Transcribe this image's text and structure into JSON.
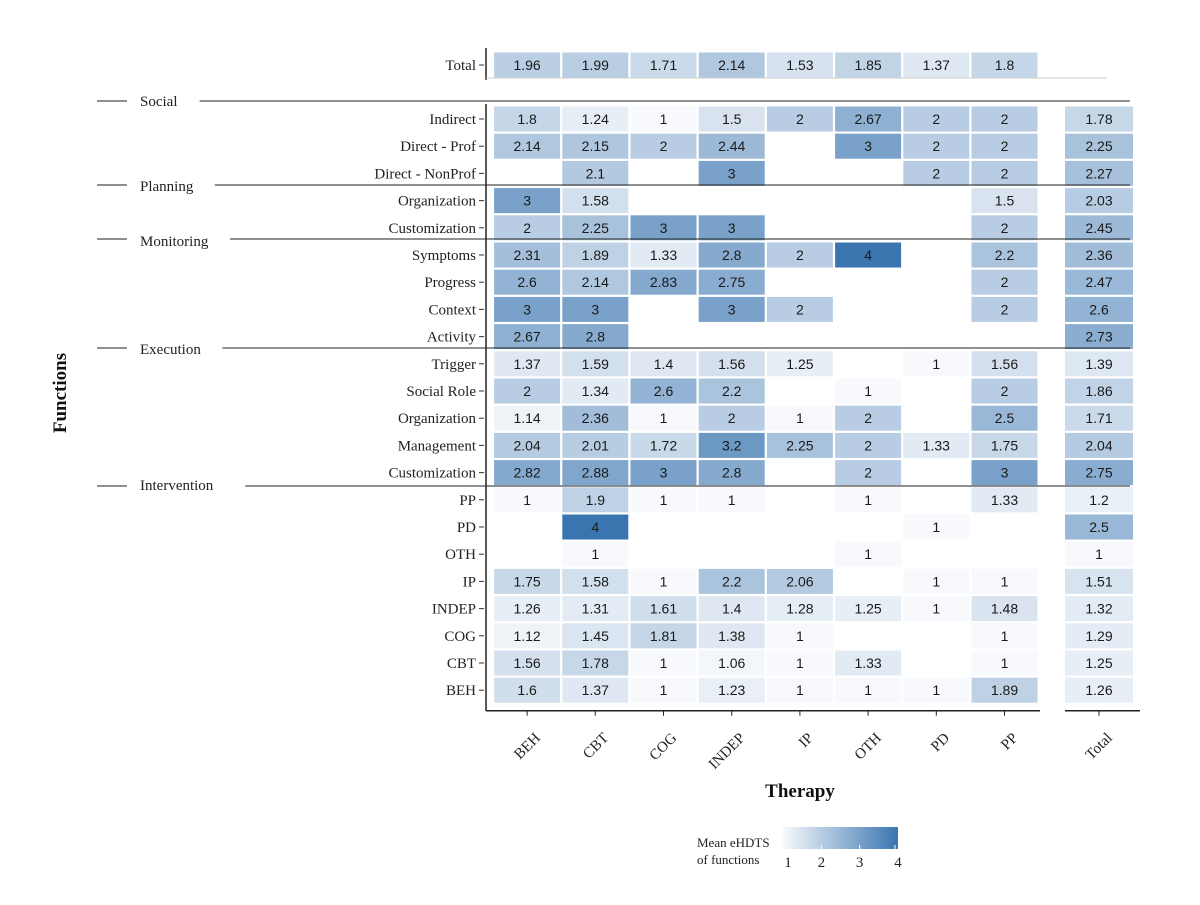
{
  "chart_data": {
    "type": "heatmap",
    "xlabel": "Therapy",
    "ylabel": "Functions",
    "columns": [
      "BEH",
      "CBT",
      "COG",
      "INDEP",
      "IP",
      "OTH",
      "PD",
      "PP"
    ],
    "total_column_label": "Total",
    "total_row": {
      "label": "Total",
      "values": [
        1.96,
        1.99,
        1.71,
        2.14,
        1.53,
        1.85,
        1.37,
        1.8
      ]
    },
    "groups": [
      {
        "name": "Social",
        "rows": [
          {
            "label": "Indirect",
            "values": [
              1.8,
              1.24,
              1,
              1.5,
              2,
              2.67,
              2,
              2
            ],
            "total": 1.78
          },
          {
            "label": "Direct - Prof",
            "values": [
              2.14,
              2.15,
              2,
              2.44,
              null,
              3,
              2,
              2
            ],
            "total": 2.25
          },
          {
            "label": "Direct - NonProf",
            "values": [
              null,
              2.1,
              null,
              3,
              null,
              null,
              2,
              2
            ],
            "total": 2.27
          }
        ]
      },
      {
        "name": "Planning",
        "rows": [
          {
            "label": "Organization",
            "values": [
              3,
              1.58,
              null,
              null,
              null,
              null,
              null,
              1.5
            ],
            "total": 2.03
          },
          {
            "label": "Customization",
            "values": [
              2,
              2.25,
              3,
              3,
              null,
              null,
              null,
              2
            ],
            "total": 2.45
          }
        ]
      },
      {
        "name": "Monitoring",
        "rows": [
          {
            "label": "Symptoms",
            "values": [
              2.31,
              1.89,
              1.33,
              2.8,
              2,
              4,
              null,
              2.2
            ],
            "total": 2.36
          },
          {
            "label": "Progress",
            "values": [
              2.6,
              2.14,
              2.83,
              2.75,
              null,
              null,
              null,
              2
            ],
            "total": 2.47
          },
          {
            "label": "Context",
            "values": [
              3,
              3,
              null,
              3,
              2,
              null,
              null,
              2
            ],
            "total": 2.6
          },
          {
            "label": "Activity",
            "values": [
              2.67,
              2.8,
              null,
              null,
              null,
              null,
              null,
              null
            ],
            "total": 2.73
          }
        ]
      },
      {
        "name": "Execution",
        "rows": [
          {
            "label": "Trigger",
            "values": [
              1.37,
              1.59,
              1.4,
              1.56,
              1.25,
              null,
              1,
              1.56
            ],
            "total": 1.39
          },
          {
            "label": "Social Role",
            "values": [
              2,
              1.34,
              2.6,
              2.2,
              null,
              1,
              null,
              2
            ],
            "total": 1.86
          },
          {
            "label": "Organization",
            "values": [
              1.14,
              2.36,
              1,
              2,
              1,
              2,
              null,
              2.5
            ],
            "total": 1.71
          },
          {
            "label": "Management",
            "values": [
              2.04,
              2.01,
              1.72,
              3.2,
              2.25,
              2,
              1.33,
              1.75
            ],
            "total": 2.04
          },
          {
            "label": "Customization",
            "values": [
              2.82,
              2.88,
              3,
              2.8,
              null,
              2,
              null,
              3
            ],
            "total": 2.75
          }
        ]
      },
      {
        "name": "Intervention",
        "rows": [
          {
            "label": "PP",
            "values": [
              1,
              1.9,
              1,
              1,
              null,
              1,
              null,
              1.33
            ],
            "total": 1.2
          },
          {
            "label": "PD",
            "values": [
              null,
              4,
              null,
              null,
              null,
              null,
              1,
              null
            ],
            "total": 2.5
          },
          {
            "label": "OTH",
            "values": [
              null,
              1,
              null,
              null,
              null,
              1,
              null,
              null
            ],
            "total": 1
          },
          {
            "label": "IP",
            "values": [
              1.75,
              1.58,
              1,
              2.2,
              2.06,
              null,
              1,
              1
            ],
            "total": 1.51
          },
          {
            "label": "INDEP",
            "values": [
              1.26,
              1.31,
              1.61,
              1.4,
              1.28,
              1.25,
              1,
              1.48
            ],
            "total": 1.32
          },
          {
            "label": "COG",
            "values": [
              1.12,
              1.45,
              1.81,
              1.38,
              1,
              null,
              null,
              1
            ],
            "total": 1.29
          },
          {
            "label": "CBT",
            "values": [
              1.56,
              1.78,
              1,
              1.06,
              1,
              1.33,
              null,
              1
            ],
            "total": 1.25
          },
          {
            "label": "BEH",
            "values": [
              1.6,
              1.37,
              1,
              1.23,
              1,
              1,
              1,
              1.89
            ],
            "total": 1.26
          }
        ]
      }
    ],
    "legend": {
      "title_line1": "Mean eHDTS",
      "title_line2": "of functions",
      "ticks": [
        1,
        2,
        3,
        4
      ],
      "range": [
        1,
        4
      ],
      "placement": "bottom"
    },
    "colors": {
      "low": "#f7f9fc",
      "high": "#3a75b0",
      "text": "#1a1a1a",
      "axis": "#222222"
    }
  }
}
